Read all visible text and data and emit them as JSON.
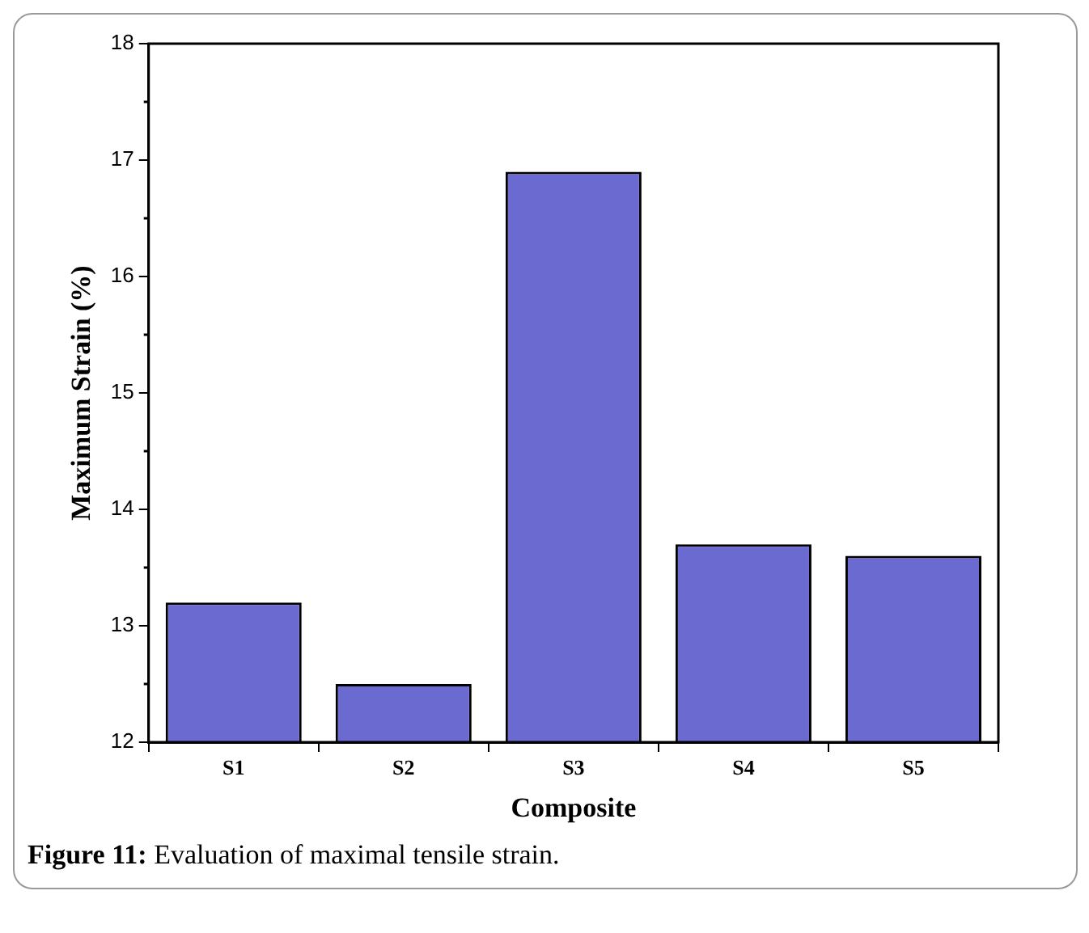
{
  "chart_data": {
    "type": "bar",
    "xlabel": "Composite",
    "ylabel": "Maximum Strain (%)",
    "categories": [
      "S1",
      "S2",
      "S3",
      "S4",
      "S5"
    ],
    "values": [
      13.2,
      12.5,
      16.9,
      13.7,
      13.6
    ],
    "color": "#6a6ad0",
    "ylim": [
      12,
      18
    ],
    "yticks": [
      12,
      13,
      14,
      15,
      16,
      17,
      18
    ],
    "grid": false,
    "annotations": [
      "Figure 11: Evaluation of maximal tensile strain."
    ]
  }
}
